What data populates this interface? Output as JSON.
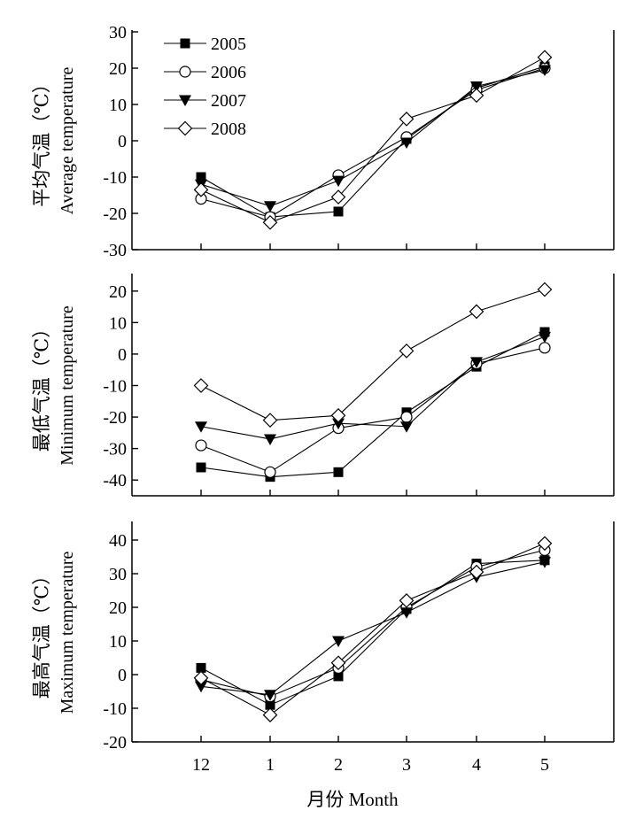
{
  "x_axis": {
    "label": "月份 Month",
    "categories": [
      "12",
      "1",
      "2",
      "3",
      "4",
      "5"
    ]
  },
  "legend": [
    {
      "name": "2005",
      "marker": "square-filled"
    },
    {
      "name": "2006",
      "marker": "circle-open"
    },
    {
      "name": "2007",
      "marker": "triangle-down-filled"
    },
    {
      "name": "2008",
      "marker": "diamond-open"
    }
  ],
  "chart_data": [
    {
      "type": "line",
      "ylabel_cn": "平均气温（℃）",
      "ylabel_en": "Average temperature",
      "ylim": [
        -30,
        30
      ],
      "yticks": [
        -30,
        -20,
        -10,
        0,
        10,
        20,
        30
      ],
      "categories": [
        "12",
        "1",
        "2",
        "3",
        "4",
        "5"
      ],
      "legend_position": "top-left",
      "series": [
        {
          "name": "2005",
          "values": [
            -10,
            -21,
            -19.5,
            0.5,
            14.5,
            20.5
          ]
        },
        {
          "name": "2006",
          "values": [
            -16,
            -21,
            -9.5,
            1,
            14,
            20
          ]
        },
        {
          "name": "2007",
          "values": [
            -12,
            -18,
            -11,
            -0.5,
            15,
            19.5
          ]
        },
        {
          "name": "2008",
          "values": [
            -13.5,
            -22.5,
            -15.5,
            6,
            12.5,
            23
          ]
        }
      ]
    },
    {
      "type": "line",
      "ylabel_cn": "最低气温（℃）",
      "ylabel_en": "Minimum temperature",
      "ylim": [
        -45,
        25
      ],
      "yticks": [
        -40,
        -30,
        -20,
        -10,
        0,
        10,
        20
      ],
      "categories": [
        "12",
        "1",
        "2",
        "3",
        "4",
        "5"
      ],
      "series": [
        {
          "name": "2005",
          "values": [
            -36,
            -39,
            -37.5,
            -18.5,
            -4,
            7
          ]
        },
        {
          "name": "2006",
          "values": [
            -29,
            -37.5,
            -23.5,
            -20,
            -3,
            2
          ]
        },
        {
          "name": "2007",
          "values": [
            -23,
            -27,
            -22,
            -23,
            -2.5,
            5.5
          ]
        },
        {
          "name": "2008",
          "values": [
            -10,
            -21,
            -19.5,
            1,
            13.5,
            20.5
          ]
        }
      ]
    },
    {
      "type": "line",
      "ylabel_cn": "最高气温（℃）",
      "ylabel_en": "Maximum temperature",
      "ylim": [
        -20,
        45
      ],
      "yticks": [
        -20,
        -10,
        0,
        10,
        20,
        30,
        40
      ],
      "categories": [
        "12",
        "1",
        "2",
        "3",
        "4",
        "5"
      ],
      "series": [
        {
          "name": "2005",
          "values": [
            2,
            -9,
            -0.5,
            19.5,
            33,
            34
          ]
        },
        {
          "name": "2006",
          "values": [
            -1.5,
            -6.5,
            2,
            20,
            32,
            37
          ]
        },
        {
          "name": "2007",
          "values": [
            -3.5,
            -6,
            10,
            18.5,
            29,
            33.5
          ]
        },
        {
          "name": "2008",
          "values": [
            -1,
            -12,
            3.5,
            22,
            30.5,
            39
          ]
        }
      ]
    }
  ]
}
